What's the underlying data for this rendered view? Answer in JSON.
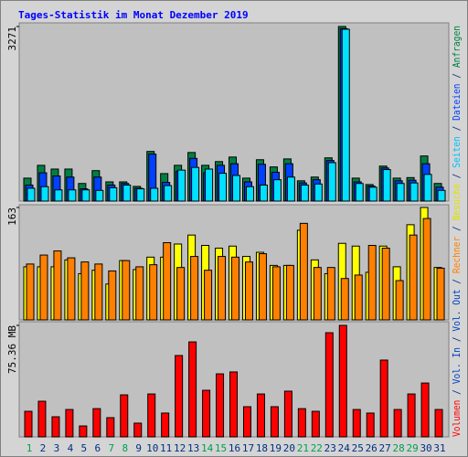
{
  "chart_data": [
    {
      "type": "bar",
      "title": "Tages-Statistik im Monat Dezember 2019",
      "ylim": [
        0,
        3271
      ],
      "yticks": [
        3271
      ],
      "series": [
        {
          "name": "Anfragen",
          "color": "#008040",
          "label_color": "#008040",
          "values": [
            430,
            670,
            600,
            600,
            330,
            570,
            360,
            360,
            275,
            930,
            515,
            670,
            910,
            670,
            740,
            825,
            430,
            775,
            640,
            790,
            380,
            450,
            810,
            3271,
            430,
            310,
            655,
            430,
            440,
            845,
            330
          ]
        },
        {
          "name": "Dateien",
          "color": "#0040ff",
          "label_color": "#0040ff",
          "values": [
            300,
            530,
            470,
            450,
            230,
            450,
            300,
            330,
            240,
            880,
            350,
            560,
            800,
            530,
            670,
            700,
            360,
            690,
            540,
            700,
            340,
            400,
            760,
            3230,
            360,
            280,
            620,
            380,
            390,
            700,
            260
          ]
        },
        {
          "name": "Seiten",
          "color": "#00e0ff",
          "label_color": "#00c0ff",
          "values": [
            240,
            270,
            210,
            210,
            210,
            200,
            250,
            300,
            230,
            240,
            290,
            580,
            630,
            600,
            520,
            480,
            270,
            300,
            400,
            450,
            300,
            320,
            720,
            3220,
            330,
            260,
            590,
            330,
            340,
            500,
            200
          ]
        }
      ]
    },
    {
      "type": "bar",
      "ylim": [
        0,
        163
      ],
      "yticks": [
        163
      ],
      "series": [
        {
          "name": "Besuche",
          "color": "#ffff00",
          "label_color": "#e0e000",
          "values": [
            77,
            77,
            77,
            87,
            67,
            72,
            52,
            86,
            73,
            91,
            91,
            110,
            123,
            108,
            104,
            107,
            92,
            98,
            79,
            79,
            130,
            87,
            67,
            111,
            107,
            69,
            107,
            77,
            138,
            163,
            76
          ]
        },
        {
          "name": "Rechner",
          "color": "#ff8000",
          "label_color": "#ff8000",
          "values": [
            81,
            94,
            100,
            90,
            84,
            81,
            71,
            86,
            77,
            80,
            112,
            76,
            92,
            72,
            92,
            91,
            84,
            96,
            77,
            79,
            140,
            76,
            76,
            60,
            65,
            108,
            104,
            57,
            123,
            147,
            75
          ]
        }
      ]
    },
    {
      "type": "bar",
      "ylim": [
        0,
        75.36
      ],
      "yticks": [
        {
          "value": 75.36,
          "label": "75.36 MB"
        }
      ],
      "categories": [
        "1",
        "2",
        "3",
        "4",
        "5",
        "6",
        "7",
        "8",
        "9",
        "10",
        "11",
        "12",
        "13",
        "14",
        "15",
        "16",
        "17",
        "18",
        "19",
        "20",
        "21",
        "22",
        "23",
        "24",
        "25",
        "26",
        "27",
        "28",
        "29",
        "30",
        "31"
      ],
      "category_colors": [
        "#00a050",
        "#003080",
        "#003080",
        "#003080",
        "#003080",
        "#003080",
        "#00a050",
        "#00a050",
        "#003080",
        "#003080",
        "#003080",
        "#003080",
        "#003080",
        "#00a050",
        "#00a050",
        "#003080",
        "#003080",
        "#003080",
        "#003080",
        "#003080",
        "#00a050",
        "#00a050",
        "#003080",
        "#003080",
        "#003080",
        "#003080",
        "#003080",
        "#00a050",
        "#00a050",
        "#003080",
        "#003080"
      ],
      "series": [
        {
          "name": "Volumen",
          "color": "#ff0000",
          "label_color": "#ff0000",
          "values": [
            17.3,
            24.1,
            13.6,
            18.5,
            7.4,
            19.1,
            13.0,
            28.4,
            9.3,
            29.0,
            16.1,
            55.0,
            64.2,
            31.5,
            42.6,
            43.9,
            20.4,
            29.0,
            20.4,
            30.9,
            19.1,
            17.3,
            70.4,
            75.36,
            18.5,
            16.1,
            51.9,
            18.5,
            29.0,
            36.4,
            18.5
          ]
        }
      ],
      "legend_extra": [
        {
          "name": "Vol. In",
          "color": "#0040c0"
        },
        {
          "name": "Vol. Out",
          "color": "#0040c0"
        }
      ]
    }
  ]
}
